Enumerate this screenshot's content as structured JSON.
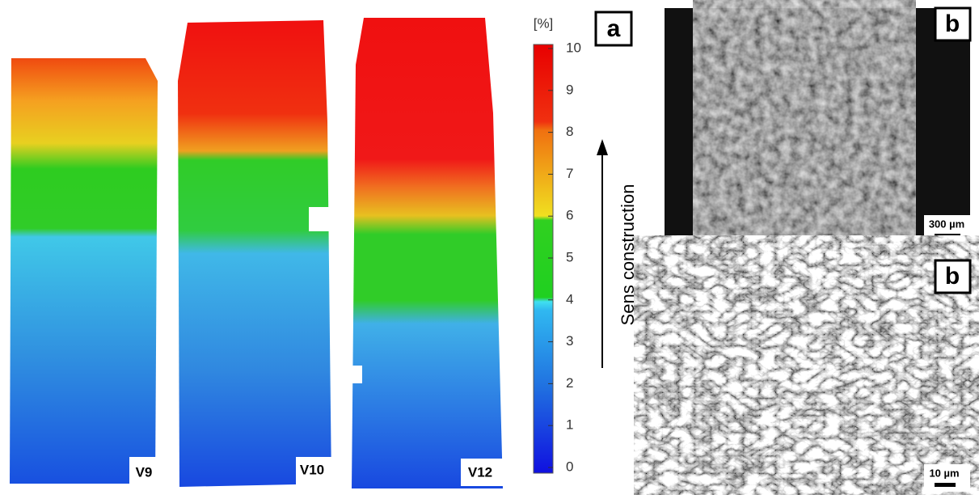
{
  "panel_a": {
    "label": "a",
    "maps": [
      "V9",
      "V10",
      "V12"
    ],
    "colorbar": {
      "unit": "[%]",
      "ticks": [
        0,
        1,
        2,
        3,
        4,
        5,
        6,
        7,
        8,
        9,
        10
      ]
    },
    "arrow_label": "Sens construction"
  },
  "panel_b_top": {
    "label": "b",
    "scale_bar": "300 µm"
  },
  "panel_b_bottom": {
    "label": "b",
    "scale_bar": "10 µm"
  }
}
